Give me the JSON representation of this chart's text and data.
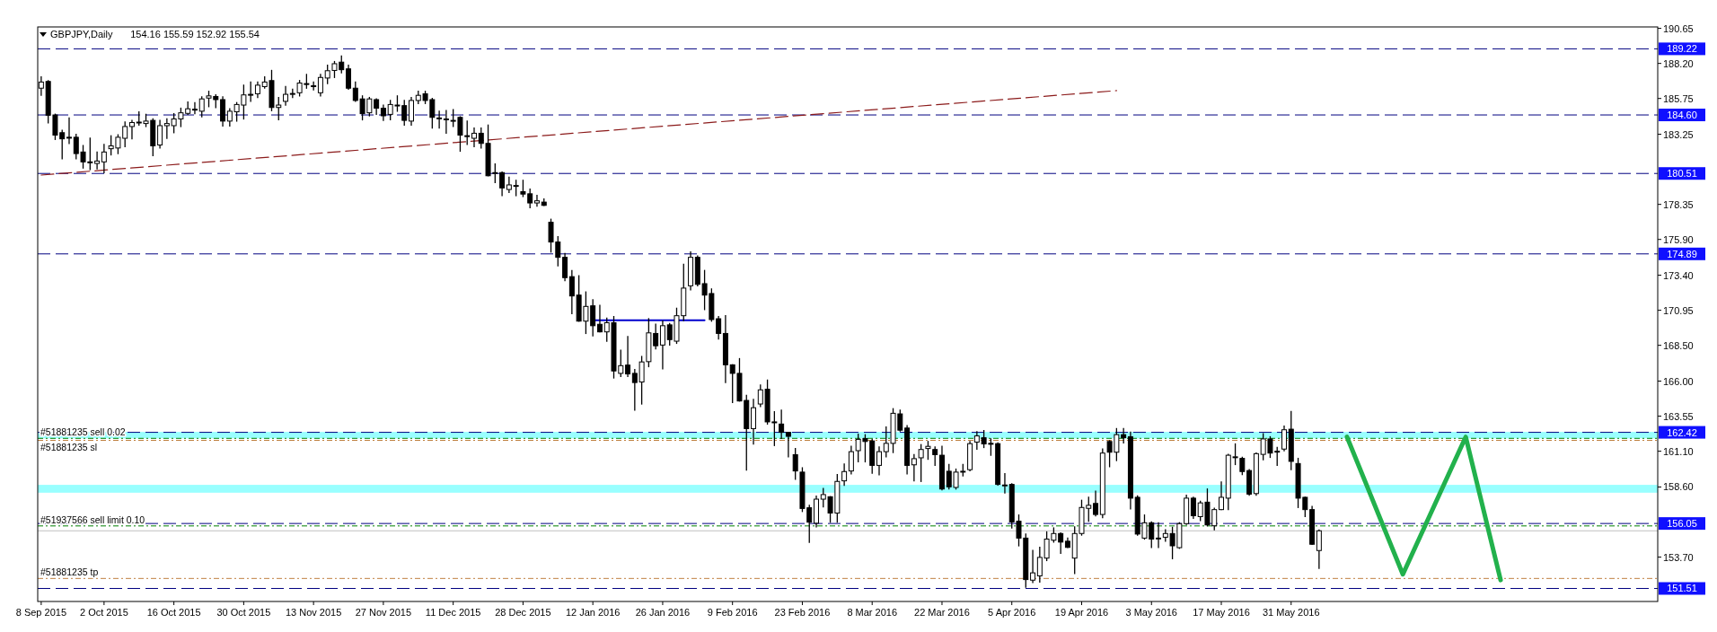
{
  "chart_data": {
    "type": "candlestick",
    "title": "GBPJPY,Daily",
    "subtitle": "154.16 155.59 152.92 155.54",
    "color": "#000000",
    "categories": [
      "8 Sep 2015",
      null,
      null,
      null,
      null,
      null,
      null,
      null,
      null,
      "2 Oct 2015",
      null,
      null,
      null,
      null,
      null,
      null,
      null,
      null,
      null,
      "16 Oct 2015",
      null,
      null,
      null,
      null,
      null,
      null,
      null,
      null,
      null,
      "30 Oct 2015",
      null,
      null,
      null,
      null,
      null,
      null,
      null,
      null,
      null,
      "13 Nov 2015",
      null,
      null,
      null,
      null,
      null,
      null,
      null,
      null,
      null,
      "27 Nov 2015",
      null,
      null,
      null,
      null,
      null,
      null,
      null,
      null,
      null,
      "11 Dec 2015",
      null,
      null,
      null,
      null,
      null,
      null,
      null,
      null,
      null,
      "28 Dec 2015",
      null,
      null,
      null,
      null,
      null,
      null,
      null,
      null,
      null,
      "12 Jan 2016",
      null,
      null,
      null,
      null,
      null,
      null,
      null,
      null,
      null,
      "26 Jan 2016",
      null,
      null,
      null,
      null,
      null,
      null,
      null,
      null,
      null,
      "9 Feb 2016",
      null,
      null,
      null,
      null,
      null,
      null,
      null,
      null,
      null,
      "23 Feb 2016",
      null,
      null,
      null,
      null,
      null,
      null,
      null,
      null,
      null,
      "8 Mar 2016",
      null,
      null,
      null,
      null,
      null,
      null,
      null,
      null,
      null,
      "22 Mar 2016",
      null,
      null,
      null,
      null,
      null,
      null,
      null,
      null,
      null,
      "5 Apr 2016",
      null,
      null,
      null,
      null,
      null,
      null,
      null,
      null,
      null,
      "19 Apr 2016",
      null,
      null,
      null,
      null,
      null,
      null,
      null,
      null,
      null,
      "3 May 2016",
      null,
      null,
      null,
      null,
      null,
      null,
      null,
      null,
      null,
      "17 May 2016",
      null,
      null,
      null,
      null,
      null,
      null,
      null,
      null,
      null,
      "31 May 2016",
      null,
      null,
      null,
      null,
      null,
      null,
      null,
      null,
      null,
      null,
      null,
      null,
      null,
      null,
      null,
      null,
      null,
      null,
      null,
      null,
      null,
      null,
      null,
      null,
      null,
      null,
      null,
      null,
      null,
      null,
      null,
      null,
      null,
      null,
      null,
      null,
      null,
      null,
      null,
      null,
      null,
      null,
      null,
      null,
      null,
      null,
      null,
      null,
      null,
      null,
      null,
      null
    ],
    "ohlc": [
      [
        186.47,
        187.26,
        185.97,
        186.9
      ],
      [
        186.94,
        187.0,
        184.04,
        184.58
      ],
      [
        184.6,
        184.65,
        182.89,
        183.19
      ],
      [
        183.36,
        183.53,
        181.53,
        182.93
      ],
      [
        183.04,
        184.39,
        182.61,
        183.0
      ],
      [
        183.04,
        183.25,
        181.53,
        181.9
      ],
      [
        182.01,
        182.46,
        180.89,
        181.32
      ],
      [
        181.32,
        182.97,
        180.79,
        181.3
      ],
      [
        181.21,
        182.01,
        180.83,
        181.38
      ],
      [
        181.32,
        182.54,
        180.57,
        182.01
      ],
      [
        182.24,
        183.14,
        181.81,
        182.44
      ],
      [
        182.29,
        183.21,
        181.9,
        183.04
      ],
      [
        182.97,
        184.11,
        182.39,
        183.79
      ],
      [
        183.79,
        184.22,
        182.93,
        184.07
      ],
      [
        184.1,
        184.82,
        183.89,
        184.05
      ],
      [
        184.0,
        184.64,
        183.79,
        184.17
      ],
      [
        184.22,
        184.32,
        181.75,
        182.44
      ],
      [
        182.5,
        184.22,
        182.29,
        183.85
      ],
      [
        183.85,
        184.32,
        182.97,
        184.0
      ],
      [
        183.85,
        184.69,
        183.36,
        184.32
      ],
      [
        184.32,
        185.07,
        183.79,
        184.75
      ],
      [
        184.71,
        185.5,
        184.64,
        185.03
      ],
      [
        185.0,
        185.46,
        184.69,
        184.97
      ],
      [
        184.86,
        185.87,
        184.47,
        185.72
      ],
      [
        185.78,
        186.25,
        185.18,
        185.93
      ],
      [
        185.89,
        186.0,
        185.12,
        185.67
      ],
      [
        185.67,
        185.87,
        183.83,
        184.17
      ],
      [
        184.17,
        185.03,
        183.83,
        184.86
      ],
      [
        184.82,
        185.46,
        184.17,
        185.33
      ],
      [
        185.29,
        186.68,
        184.32,
        186.0
      ],
      [
        186.04,
        186.9,
        185.55,
        186.0
      ],
      [
        186.08,
        186.9,
        185.82,
        186.68
      ],
      [
        186.58,
        187.26,
        186.47,
        186.9
      ],
      [
        187.0,
        187.71,
        184.9,
        185.12
      ],
      [
        185.12,
        185.82,
        184.26,
        185.29
      ],
      [
        185.55,
        186.58,
        185.29,
        186.04
      ],
      [
        186.1,
        186.4,
        185.82,
        186.1
      ],
      [
        186.15,
        187.0,
        185.93,
        186.83
      ],
      [
        186.79,
        187.43,
        186.47,
        186.75
      ],
      [
        186.64,
        186.9,
        186.36,
        186.64
      ],
      [
        186.15,
        187.43,
        185.93,
        187.22
      ],
      [
        187.18,
        188.08,
        186.79,
        187.69
      ],
      [
        187.71,
        188.33,
        187.22,
        188.18
      ],
      [
        188.29,
        188.72,
        187.54,
        187.76
      ],
      [
        187.82,
        188.08,
        186.4,
        186.47
      ],
      [
        186.47,
        186.9,
        185.55,
        185.61
      ],
      [
        185.72,
        185.93,
        184.26,
        184.69
      ],
      [
        184.75,
        185.82,
        184.54,
        185.72
      ],
      [
        185.67,
        185.72,
        184.64,
        185.07
      ],
      [
        185.07,
        185.29,
        184.22,
        184.54
      ],
      [
        184.64,
        185.61,
        184.26,
        185.33
      ],
      [
        185.29,
        185.93,
        184.86,
        185.29
      ],
      [
        185.25,
        185.61,
        183.89,
        184.22
      ],
      [
        184.17,
        185.82,
        183.89,
        185.61
      ],
      [
        185.61,
        186.25,
        185.4,
        185.97
      ],
      [
        186.08,
        186.25,
        185.4,
        185.61
      ],
      [
        185.67,
        185.76,
        183.68,
        184.43
      ],
      [
        184.39,
        184.86,
        183.68,
        184.39
      ],
      [
        184.32,
        184.9,
        183.32,
        184.32
      ],
      [
        184.22,
        184.97,
        183.79,
        184.22
      ],
      [
        184.43,
        184.47,
        182.07,
        183.19
      ],
      [
        183.15,
        184.17,
        182.54,
        183.1
      ],
      [
        182.97,
        183.68,
        182.39,
        183.32
      ],
      [
        183.32,
        183.68,
        182.29,
        182.61
      ],
      [
        182.61,
        183.89,
        180.35,
        180.35
      ],
      [
        180.57,
        181.17,
        179.88,
        180.57
      ],
      [
        180.57,
        180.61,
        178.96,
        179.5
      ],
      [
        179.39,
        180.25,
        179.18,
        179.71
      ],
      [
        179.67,
        180.03,
        178.96,
        179.67
      ],
      [
        179.24,
        180.03,
        178.9,
        179.07
      ],
      [
        179.09,
        179.41,
        178.12,
        178.45
      ],
      [
        178.45,
        178.98,
        178.23,
        178.6
      ],
      [
        178.51,
        178.73,
        178.28,
        178.28
      ],
      [
        177.1,
        177.31,
        175.02,
        175.72
      ],
      [
        175.72,
        176.09,
        174.05,
        174.65
      ],
      [
        174.65,
        174.91,
        173.02,
        173.23
      ],
      [
        173.3,
        173.73,
        170.72,
        171.95
      ],
      [
        172.01,
        173.36,
        170.19,
        170.19
      ],
      [
        170.19,
        172.23,
        169.33,
        171.22
      ],
      [
        171.26,
        171.69,
        169.16,
        169.87
      ],
      [
        169.97,
        171.3,
        169.44,
        169.44
      ],
      [
        169.44,
        170.4,
        168.79,
        170.08
      ],
      [
        170.08,
        170.51,
        166.22,
        166.71
      ],
      [
        166.54,
        168.15,
        166.33,
        167.08
      ],
      [
        167.12,
        169.12,
        166.33,
        166.5
      ],
      [
        166.54,
        166.8,
        163.97,
        165.9
      ],
      [
        165.94,
        167.72,
        164.4,
        167.34
      ],
      [
        167.36,
        170.36,
        167.01,
        169.37
      ],
      [
        169.33,
        169.97,
        168.26,
        168.47
      ],
      [
        168.52,
        170.19,
        166.86,
        169.87
      ],
      [
        169.93,
        170.02,
        168.52,
        168.9
      ],
      [
        168.79,
        171.09,
        168.64,
        170.57
      ],
      [
        170.57,
        174.16,
        170.23,
        172.5
      ],
      [
        172.66,
        175.02,
        172.38,
        174.65
      ],
      [
        174.65,
        174.74,
        172.66,
        172.76
      ],
      [
        172.81,
        173.73,
        171.0,
        172.01
      ],
      [
        172.12,
        172.44,
        170.19,
        170.3
      ],
      [
        170.36,
        170.51,
        168.94,
        169.33
      ],
      [
        169.33,
        170.57,
        165.9,
        167.14
      ],
      [
        167.14,
        167.14,
        164.5,
        166.54
      ],
      [
        166.54,
        167.57,
        164.61,
        164.61
      ],
      [
        164.65,
        165.0,
        159.78,
        162.68
      ],
      [
        162.68,
        164.72,
        161.61,
        164.14
      ],
      [
        164.4,
        165.73,
        164.22,
        165.39
      ],
      [
        165.43,
        166.07,
        163.0,
        163.15
      ],
      [
        163.15,
        163.86,
        161.5,
        163.11
      ],
      [
        163.0,
        163.97,
        161.99,
        162.42
      ],
      [
        162.42,
        162.42,
        160.71,
        162.14
      ],
      [
        160.86,
        161.29,
        159.14,
        159.72
      ],
      [
        159.64,
        159.94,
        156.89,
        157.1
      ],
      [
        157.15,
        157.32,
        154.74,
        156.14
      ],
      [
        156.07,
        157.96,
        155.82,
        157.75
      ],
      [
        157.75,
        158.5,
        157.21,
        158.07
      ],
      [
        157.92,
        157.92,
        156.14,
        156.78
      ],
      [
        156.78,
        159.46,
        156.14,
        158.99
      ],
      [
        159.03,
        160.21,
        158.71,
        159.68
      ],
      [
        159.72,
        161.44,
        159.51,
        161.07
      ],
      [
        161.14,
        162.29,
        160.36,
        161.93
      ],
      [
        161.99,
        162.25,
        160.36,
        161.78
      ],
      [
        161.82,
        161.93,
        159.57,
        160.11
      ],
      [
        160.11,
        161.39,
        159.46,
        161.07
      ],
      [
        161.07,
        162.79,
        160.71,
        161.65
      ],
      [
        161.65,
        164.07,
        161.01,
        163.75
      ],
      [
        163.71,
        163.97,
        162.51,
        162.57
      ],
      [
        162.72,
        162.89,
        159.51,
        160.11
      ],
      [
        160.15,
        160.86,
        159.03,
        160.58
      ],
      [
        160.64,
        161.56,
        158.99,
        161.22
      ],
      [
        161.29,
        161.78,
        160.54,
        161.44
      ],
      [
        161.22,
        161.39,
        160.11,
        160.86
      ],
      [
        160.82,
        161.44,
        158.4,
        158.46
      ],
      [
        159.7,
        160.17,
        158.46,
        158.61
      ],
      [
        158.57,
        159.85,
        158.46,
        159.64
      ],
      [
        159.7,
        160.17,
        159.38,
        159.7
      ],
      [
        159.81,
        161.78,
        159.74,
        161.63
      ],
      [
        161.74,
        162.47,
        161.25,
        162.17
      ],
      [
        162.04,
        162.54,
        161.36,
        161.61
      ],
      [
        161.65,
        161.96,
        160.82,
        161.61
      ],
      [
        161.63,
        161.68,
        158.74,
        158.78
      ],
      [
        158.74,
        159.53,
        158.18,
        158.74
      ],
      [
        158.78,
        158.82,
        155.74,
        156.16
      ],
      [
        156.21,
        156.64,
        154.49,
        155.03
      ],
      [
        155.03,
        155.31,
        151.6,
        152.13
      ],
      [
        152.09,
        154.17,
        151.92,
        152.6
      ],
      [
        152.39,
        154.38,
        151.96,
        153.68
      ],
      [
        153.63,
        155.46,
        153.46,
        154.96
      ],
      [
        154.88,
        155.74,
        154.75,
        155.35
      ],
      [
        155.35,
        155.39,
        153.96,
        154.75
      ],
      [
        154.81,
        155.03,
        154.38,
        154.38
      ],
      [
        153.63,
        155.82,
        152.56,
        155.35
      ],
      [
        155.35,
        157.67,
        155.24,
        157.17
      ],
      [
        157.11,
        157.88,
        156.21,
        157.32
      ],
      [
        157.45,
        158.31,
        156.59,
        156.68
      ],
      [
        156.68,
        161.25,
        156.46,
        160.97
      ],
      [
        161.78,
        161.83,
        160.02,
        161.03
      ],
      [
        161.03,
        162.68,
        160.45,
        162.26
      ],
      [
        162.26,
        162.68,
        161.68,
        162.04
      ],
      [
        162.11,
        162.43,
        157.07,
        157.82
      ],
      [
        157.88,
        157.97,
        155.24,
        155.31
      ],
      [
        155.03,
        156.64,
        154.96,
        156.1
      ],
      [
        156.1,
        156.16,
        154.38,
        154.96
      ],
      [
        155.03,
        156.1,
        154.38,
        155.03
      ],
      [
        155.09,
        155.61,
        154.81,
        155.35
      ],
      [
        155.35,
        155.78,
        153.59,
        154.49
      ],
      [
        154.36,
        156.1,
        154.32,
        156.04
      ],
      [
        156.04,
        158.03,
        155.99,
        157.82
      ],
      [
        157.82,
        157.88,
        156.42,
        156.59
      ],
      [
        156.53,
        157.6,
        156.25,
        157.49
      ],
      [
        157.54,
        158.46,
        155.89,
        155.95
      ],
      [
        155.89,
        157.11,
        155.61,
        157.02
      ],
      [
        157.02,
        158.95,
        157.02,
        157.88
      ],
      [
        157.82,
        160.88,
        157.02,
        160.82
      ],
      [
        160.71,
        161.61,
        160.17,
        160.71
      ],
      [
        160.6,
        160.67,
        159.47,
        159.68
      ],
      [
        159.75,
        159.81,
        158.03,
        158.1
      ],
      [
        158.14,
        160.97,
        158.03,
        160.93
      ],
      [
        160.88,
        162.32,
        160.5,
        161.96
      ],
      [
        161.96,
        162.11,
        160.67,
        160.97
      ],
      [
        161.1,
        161.36,
        160.11,
        161.1
      ],
      [
        161.25,
        162.86,
        161.14,
        162.6
      ],
      [
        162.64,
        163.87,
        159.81,
        160.39
      ],
      [
        160.24,
        160.6,
        157.17,
        157.82
      ],
      [
        157.88,
        157.88,
        156.53,
        157.02
      ],
      [
        157.02,
        157.24,
        154.6,
        154.6
      ],
      [
        154.16,
        155.59,
        152.92,
        155.54
      ],
      null,
      null,
      null,
      null,
      null,
      null,
      null,
      null,
      null,
      null,
      null,
      null,
      null,
      null,
      null,
      null,
      null,
      null,
      null,
      null,
      null,
      null,
      null,
      null,
      null,
      null,
      null,
      null,
      null,
      null,
      null,
      null,
      null,
      null,
      null,
      null,
      null,
      null,
      null,
      null,
      null,
      null,
      null,
      null,
      null,
      null,
      null,
      null
    ],
    "series": [
      {
        "type": "line",
        "color": "#8b1a1a",
        "line_style": "dashed",
        "values": [
          180.4,
          null,
          null,
          null,
          null,
          null,
          null,
          null,
          null,
          null,
          null,
          null,
          null,
          null,
          null,
          null,
          null,
          null,
          null,
          null,
          null,
          null,
          null,
          null,
          null,
          null,
          null,
          null,
          null,
          null,
          null,
          null,
          null,
          null,
          null,
          null,
          null,
          null,
          null,
          null,
          null,
          null,
          null,
          null,
          null,
          null,
          null,
          null,
          null,
          null,
          null,
          null,
          null,
          null,
          null,
          null,
          null,
          null,
          null,
          null,
          null,
          null,
          null,
          null,
          null,
          null,
          null,
          null,
          null,
          null,
          null,
          null,
          null,
          null,
          null,
          null,
          null,
          null,
          null,
          null,
          null,
          null,
          null,
          null,
          null,
          null,
          null,
          null,
          null,
          null,
          null,
          null,
          null,
          null,
          null,
          null,
          null,
          null,
          null,
          null,
          null,
          null,
          null,
          null,
          null,
          null,
          null,
          null,
          null,
          null,
          null,
          null,
          null,
          null,
          null,
          null,
          null,
          null,
          null,
          null,
          null,
          null,
          null,
          null,
          null,
          null,
          null,
          null,
          null,
          null,
          null,
          null,
          null,
          null,
          null,
          null,
          null,
          null,
          null,
          null,
          null,
          null,
          null,
          null,
          null,
          null,
          null,
          null,
          null,
          null,
          null,
          null,
          null,
          null,
          186.3,
          null,
          null,
          null,
          null,
          null,
          null,
          null,
          null,
          null,
          null,
          null,
          null,
          null,
          null,
          null,
          null,
          null,
          null,
          null,
          null,
          null,
          null,
          null,
          null,
          null,
          null,
          null,
          null,
          null,
          null,
          null,
          null,
          null,
          null,
          null,
          null,
          null,
          null,
          null,
          null,
          null,
          null,
          null,
          null,
          null,
          null,
          null,
          null,
          null,
          null,
          null,
          null,
          null,
          null,
          null,
          null,
          null,
          null,
          null,
          null,
          null,
          null,
          null,
          null,
          null,
          null,
          null,
          null,
          null,
          null,
          null,
          null,
          null,
          null,
          null,
          null,
          null
        ]
      },
      {
        "type": "line",
        "color": "#0000cd",
        "line_style": "solid",
        "values": [
          null,
          null,
          null,
          null,
          null,
          null,
          null,
          null,
          null,
          null,
          null,
          null,
          null,
          null,
          null,
          null,
          null,
          null,
          null,
          null,
          null,
          null,
          null,
          null,
          null,
          null,
          null,
          null,
          null,
          null,
          null,
          null,
          null,
          null,
          null,
          null,
          null,
          null,
          null,
          null,
          null,
          null,
          null,
          null,
          null,
          null,
          null,
          null,
          null,
          null,
          null,
          null,
          null,
          null,
          null,
          null,
          null,
          null,
          null,
          null,
          null,
          null,
          null,
          null,
          null,
          null,
          null,
          null,
          null,
          null,
          null,
          null,
          null,
          null,
          null,
          null,
          null,
          null,
          null,
          170.25,
          null,
          null,
          null,
          null,
          null,
          null,
          null,
          null,
          null,
          null,
          null,
          null,
          null,
          null,
          null,
          170.25,
          null,
          null,
          null,
          null,
          null,
          null,
          null,
          null,
          null,
          null,
          null,
          null,
          null,
          null,
          null,
          null,
          null,
          null,
          null,
          null,
          null,
          null,
          null,
          null,
          null,
          null,
          null,
          null,
          null,
          null,
          null,
          null,
          null,
          null,
          null,
          null,
          null,
          null,
          null,
          null,
          null,
          null,
          null,
          null,
          null,
          null,
          null,
          null,
          null,
          null,
          null,
          null,
          null,
          null,
          null,
          null,
          null,
          null,
          null,
          null,
          null,
          null,
          null,
          null,
          null,
          null,
          null,
          null,
          null,
          null,
          null,
          null,
          null,
          null,
          null,
          null,
          null,
          null,
          null,
          null,
          null,
          null,
          null,
          null,
          null,
          null,
          null,
          null,
          null,
          null,
          null,
          null,
          null,
          null,
          null,
          null,
          null,
          null,
          null,
          null,
          null,
          null,
          null,
          null,
          null,
          null,
          null,
          null,
          null,
          null,
          null,
          null,
          null,
          null,
          null,
          null,
          null,
          null,
          null,
          null,
          null,
          null,
          null,
          null,
          null,
          null,
          null,
          null,
          null,
          null,
          null,
          null,
          null,
          null,
          null,
          null
        ]
      },
      {
        "type": "line",
        "color": "#22b14c",
        "line_style": "solid",
        "values": [
          null,
          null,
          null,
          null,
          null,
          null,
          null,
          null,
          null,
          null,
          null,
          null,
          null,
          null,
          null,
          null,
          null,
          null,
          null,
          null,
          null,
          null,
          null,
          null,
          null,
          null,
          null,
          null,
          null,
          null,
          null,
          null,
          null,
          null,
          null,
          null,
          null,
          null,
          null,
          null,
          null,
          null,
          null,
          null,
          null,
          null,
          null,
          null,
          null,
          null,
          null,
          null,
          null,
          null,
          null,
          null,
          null,
          null,
          null,
          null,
          null,
          null,
          null,
          null,
          null,
          null,
          null,
          null,
          null,
          null,
          null,
          null,
          null,
          null,
          null,
          null,
          null,
          null,
          null,
          null,
          null,
          null,
          null,
          null,
          null,
          null,
          null,
          null,
          null,
          null,
          null,
          null,
          null,
          null,
          null,
          null,
          null,
          null,
          null,
          null,
          null,
          null,
          null,
          null,
          null,
          null,
          null,
          null,
          null,
          null,
          null,
          null,
          null,
          null,
          null,
          null,
          null,
          null,
          null,
          null,
          null,
          null,
          null,
          null,
          null,
          null,
          null,
          null,
          null,
          null,
          null,
          null,
          null,
          null,
          null,
          null,
          null,
          null,
          null,
          null,
          null,
          null,
          null,
          null,
          null,
          null,
          null,
          null,
          null,
          null,
          null,
          null,
          null,
          null,
          null,
          null,
          null,
          null,
          null,
          null,
          null,
          null,
          null,
          null,
          null,
          null,
          null,
          null,
          null,
          null,
          null,
          null,
          null,
          null,
          null,
          null,
          null,
          null,
          null,
          null,
          null,
          null,
          null,
          null,
          null,
          null,
          null,
          162.1,
          null,
          null,
          null,
          null,
          null,
          null,
          null,
          152.5,
          null,
          null,
          null,
          null,
          null,
          null,
          null,
          null,
          162.1,
          null,
          null,
          null,
          null,
          152.1,
          null,
          null,
          null,
          null,
          null,
          null,
          null,
          null,
          null,
          null,
          null,
          null,
          null,
          null,
          null,
          null,
          null,
          null,
          null,
          null,
          null,
          null
        ]
      }
    ],
    "ylim": [
      150.6,
      190.75
    ],
    "yticks": [
      190.65,
      {
        "value": 188.2,
        "label": "188.20"
      },
      185.75,
      183.25,
      178.35,
      {
        "value": 175.9,
        "label": "175.90"
      },
      {
        "value": 173.4,
        "label": "173.40"
      },
      170.95,
      {
        "value": 168.5,
        "label": "168.50"
      },
      {
        "value": 166,
        "label": "166.00"
      },
      163.55,
      {
        "value": 161.1,
        "label": "161.10"
      },
      {
        "value": 158.6,
        "label": "158.60"
      },
      {
        "value": 153.7,
        "label": "153.70"
      }
    ],
    "bands": [
      {
        "axis": "y",
        "from": 162.0,
        "to": 162.45,
        "color": "#00ffff"
      },
      {
        "axis": "y",
        "from": 158.2,
        "to": 158.75,
        "color": "#00ffff"
      }
    ],
    "ref_lines": [
      {
        "axis": "y",
        "value": 189.22,
        "label": "189.22",
        "color": "#000080",
        "line_style": "dashed"
      },
      {
        "axis": "y",
        "value": 184.6,
        "label": "184.60",
        "color": "#000080",
        "line_style": "dashed"
      },
      {
        "axis": "y",
        "value": 180.51,
        "label": "180.51",
        "color": "#000080",
        "line_style": "dashed"
      },
      {
        "axis": "y",
        "value": 174.89,
        "label": "174.89",
        "color": "#000080",
        "line_style": "dashed"
      },
      {
        "axis": "y",
        "value": 162.42,
        "label": "162.42",
        "color": "#000080",
        "line_style": "dashed"
      },
      {
        "axis": "y",
        "value": 156.05,
        "label": "156.05",
        "color": "#000080",
        "line_style": "dashed"
      },
      {
        "axis": "y",
        "value": 151.51,
        "label": "151.51",
        "color": "#000080",
        "line_style": "dashed"
      },
      {
        "axis": "y",
        "value": 162.0,
        "label": "#51881235 sell 0.02",
        "color": "#008000",
        "line_style": "dotted"
      },
      {
        "axis": "y",
        "value": 161.86,
        "label": "#51881235 sl",
        "color": "#c08040",
        "line_style": "dotted"
      },
      {
        "axis": "y",
        "value": 155.88,
        "label": "#51937566 sell limit 0.10",
        "color": "#008000",
        "line_style": "dotted"
      },
      {
        "axis": "y",
        "value": 152.21,
        "label": "#51881235 tp",
        "color": "#c08040",
        "line_style": "dotted"
      },
      {
        "axis": "y",
        "value": 155.54,
        "color": "#c0c0c0",
        "line_style": "solid"
      }
    ],
    "grid": false
  }
}
